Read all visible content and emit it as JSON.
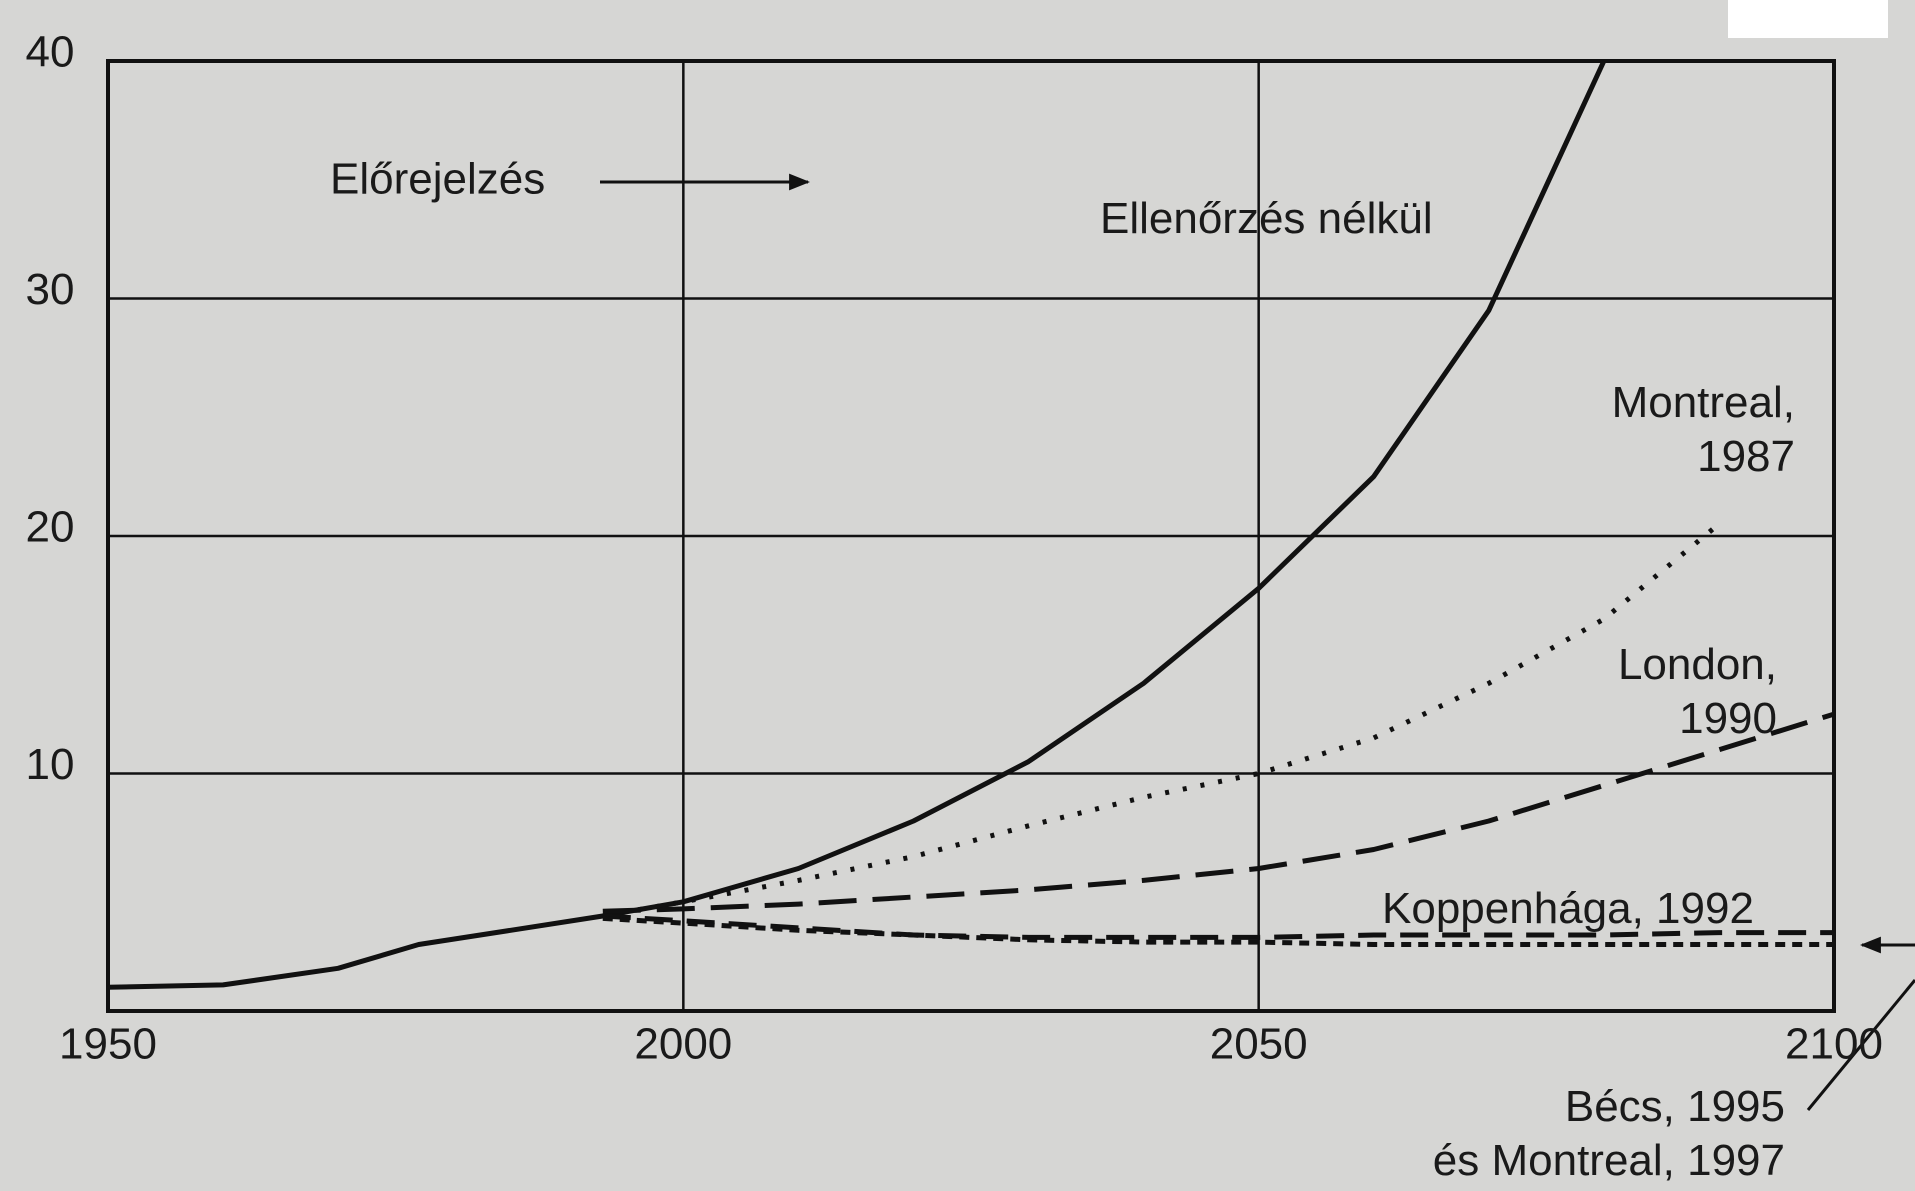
{
  "chart_data": {
    "type": "line",
    "annotation": "Előrejelzés",
    "x": [
      1950,
      1960,
      1970,
      1977,
      1985,
      1993,
      2000,
      2010,
      2020,
      2030,
      2040,
      2050,
      2060,
      2070,
      2080,
      2090,
      2100
    ],
    "series": [
      {
        "name": "Ellenőrzés nélkül",
        "color": "#111111",
        "dash": "none",
        "values": [
          1,
          1.1,
          1.8,
          2.8,
          3.4,
          4,
          4.6,
          6,
          8,
          10.5,
          13.8,
          17.8,
          22.5,
          29.5,
          40,
          null,
          null
        ]
      },
      {
        "name": "Montreal,\n1987",
        "color": "#111111",
        "dash": "4 14",
        "values": [
          null,
          null,
          null,
          null,
          null,
          4,
          4.6,
          5.5,
          6.5,
          7.8,
          9,
          10,
          11.5,
          13.8,
          16.5,
          20.5,
          null
        ]
      },
      {
        "name": "London,\n1990",
        "color": "#111111",
        "dash": "38 16",
        "values": [
          null,
          null,
          null,
          null,
          null,
          4.2,
          4.3,
          4.5,
          4.8,
          5.1,
          5.5,
          6,
          6.8,
          8,
          9.5,
          11,
          12.5
        ]
      },
      {
        "name": "Koppenhága, 1992",
        "color": "#111111",
        "dash": "28 14",
        "values": [
          null,
          null,
          null,
          null,
          null,
          4,
          3.8,
          3.5,
          3.2,
          3.1,
          3.1,
          3.1,
          3.2,
          3.2,
          3.2,
          3.3,
          3.3
        ]
      },
      {
        "name": "Bécs, 1995\nés Montreal, 1997",
        "color": "#111111",
        "dash": "10 7",
        "values": [
          null,
          null,
          null,
          null,
          null,
          3.9,
          3.7,
          3.4,
          3.2,
          3,
          2.9,
          2.9,
          2.8,
          2.8,
          2.8,
          2.8,
          2.8
        ]
      }
    ],
    "xlim": [
      1950,
      2100
    ],
    "xticks": [
      1950,
      2000,
      2050,
      2100
    ],
    "ylim": [
      0,
      40
    ],
    "yticks": [
      10,
      20,
      30,
      40
    ],
    "grid": true
  }
}
